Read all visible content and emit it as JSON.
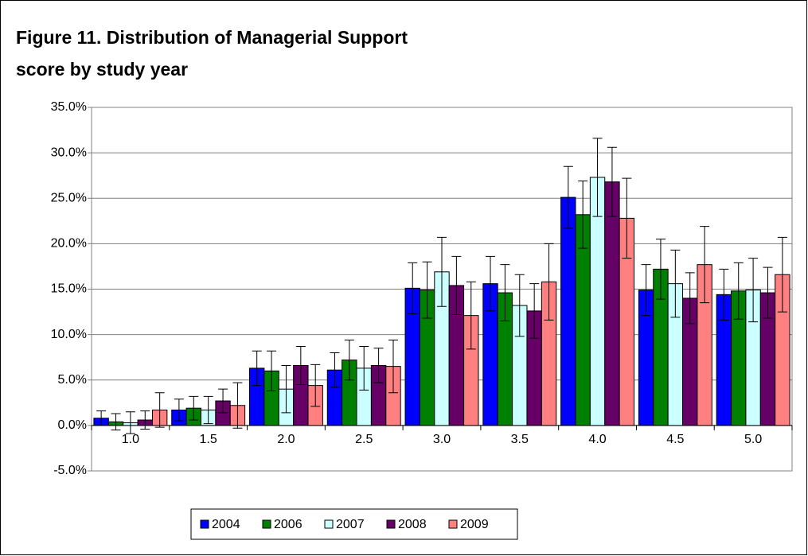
{
  "chart_data": {
    "type": "bar",
    "title": [
      "Figure 11. Distribution of Managerial Support",
      "score by study year"
    ],
    "categories": [
      "1.0",
      "1.5",
      "2.0",
      "2.5",
      "3.0",
      "3.5",
      "4.0",
      "4.5",
      "5.0"
    ],
    "series": [
      {
        "name": "2004",
        "color": "#0000ff",
        "values": [
          0.8,
          1.7,
          6.3,
          6.1,
          15.1,
          15.6,
          25.1,
          14.9,
          14.4
        ],
        "errors": [
          0.8,
          1.2,
          1.9,
          1.9,
          2.8,
          3.0,
          3.4,
          2.8,
          2.8
        ]
      },
      {
        "name": "2006",
        "color": "#008000",
        "values": [
          0.4,
          1.9,
          6.0,
          7.2,
          14.9,
          14.6,
          23.2,
          17.2,
          14.8
        ],
        "errors": [
          0.9,
          1.3,
          2.2,
          2.2,
          3.1,
          3.1,
          3.7,
          3.3,
          3.1
        ]
      },
      {
        "name": "2007",
        "color": "#ccffff",
        "values": [
          0.3,
          1.7,
          4.0,
          6.3,
          16.9,
          13.2,
          27.3,
          15.6,
          14.9
        ],
        "errors": [
          1.2,
          1.5,
          2.6,
          2.4,
          3.8,
          3.4,
          4.3,
          3.7,
          3.5
        ]
      },
      {
        "name": "2008",
        "color": "#660066",
        "values": [
          0.6,
          2.7,
          6.6,
          6.6,
          15.4,
          12.6,
          26.8,
          14.0,
          14.6
        ],
        "errors": [
          1.0,
          1.3,
          2.1,
          1.9,
          3.2,
          3.0,
          3.8,
          2.8,
          2.8
        ]
      },
      {
        "name": "2009",
        "color": "#ff8080",
        "values": [
          1.7,
          2.2,
          4.4,
          6.5,
          12.1,
          15.8,
          22.8,
          17.7,
          16.6
        ],
        "errors": [
          1.9,
          2.5,
          2.3,
          2.9,
          3.7,
          4.2,
          4.4,
          4.2,
          4.1
        ]
      }
    ],
    "ylim": [
      -5,
      35
    ],
    "yticks": [
      {
        "value": -5,
        "label": "-5.0%"
      },
      {
        "value": 0,
        "label": "0.0%"
      },
      {
        "value": 5,
        "label": "5.0%"
      },
      {
        "value": 10,
        "label": "10.0%"
      },
      {
        "value": 15,
        "label": "15.0%"
      },
      {
        "value": 20,
        "label": "20.0%"
      },
      {
        "value": 25,
        "label": "25.0%"
      },
      {
        "value": 30,
        "label": "30.0%"
      },
      {
        "value": 35,
        "label": "35.0%"
      }
    ],
    "grid": true,
    "legend": "bottom"
  }
}
